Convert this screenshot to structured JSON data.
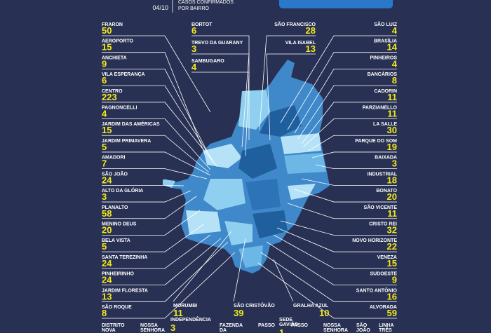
{
  "header": {
    "date": "04/10",
    "subtitle": [
      "CASOS CONFIRMADOS",
      "POR BAIRRO"
    ]
  },
  "left": [
    {
      "name": "FRARON",
      "cases": "50"
    },
    {
      "name": "AEROPORTO",
      "cases": "15"
    },
    {
      "name": "ANCHIETA",
      "cases": "9"
    },
    {
      "name": "VILA ESPERANÇA",
      "cases": "6"
    },
    {
      "name": "CENTRO",
      "cases": "223"
    },
    {
      "name": "PAGNONCELLI",
      "cases": "4"
    },
    {
      "name": "JARDIM DAS AMÉRICAS",
      "cases": "15"
    },
    {
      "name": "JARDIM PRIMAVERA",
      "cases": "5"
    },
    {
      "name": "AMADORI",
      "cases": "7"
    },
    {
      "name": "SÃO JOÃO",
      "cases": "24"
    },
    {
      "name": "ALTO DA GLÓRIA",
      "cases": "3"
    },
    {
      "name": "PLANALTO",
      "cases": "58"
    },
    {
      "name": "MENINO DEUS",
      "cases": "20"
    },
    {
      "name": "BELA VISTA",
      "cases": "5"
    },
    {
      "name": "SANTA TEREZINHA",
      "cases": "24"
    },
    {
      "name": "PINHEIRINHO",
      "cases": "24"
    },
    {
      "name": "JARDIM FLORESTA",
      "cases": "13"
    },
    {
      "name": "SÃO ROQUE",
      "cases": "8"
    }
  ],
  "middle_left": [
    {
      "name": "BORTOT",
      "cases": "6"
    },
    {
      "name": "TREVO DA GUARANY",
      "cases": "3"
    },
    {
      "name": "SAMBUGARO",
      "cases": "4"
    }
  ],
  "middle_right": [
    {
      "name": "SÃO FRANCISCO",
      "cases": "28"
    },
    {
      "name": "VILA ISABEL",
      "cases": "13"
    }
  ],
  "right": [
    {
      "name": "SÃO LUIZ",
      "cases": "4"
    },
    {
      "name": "BRASÍLIA",
      "cases": "14"
    },
    {
      "name": "PINHEIROS",
      "cases": "4"
    },
    {
      "name": "BANCÁRIOS",
      "cases": "8"
    },
    {
      "name": "CADORIN",
      "cases": "11"
    },
    {
      "name": "PARZIANELLO",
      "cases": "11"
    },
    {
      "name": "LA SALLE",
      "cases": "30"
    },
    {
      "name": "PARQUE DO SOM",
      "cases": "19"
    },
    {
      "name": "BAIXADA",
      "cases": "3"
    },
    {
      "name": "INDUSTRIAL",
      "cases": "18"
    },
    {
      "name": "BONATO",
      "cases": "20"
    },
    {
      "name": "SÃO VICENTE",
      "cases": "11"
    },
    {
      "name": "CRISTO REI",
      "cases": "32"
    },
    {
      "name": "NOVO HORIZONTE",
      "cases": "22"
    },
    {
      "name": "VENEZA",
      "cases": "15"
    },
    {
      "name": "SUDOESTE",
      "cases": "9"
    },
    {
      "name": "SANTO ANTÔNIO",
      "cases": "16"
    },
    {
      "name": "ALVORADA",
      "cases": "59"
    }
  ],
  "bottom": [
    {
      "name": "MORUMBI",
      "cases": "11"
    },
    {
      "name": "SÃO CRISTÓVÃO",
      "cases": "39"
    },
    {
      "name": "GRALHA AZUL",
      "cases": "10"
    }
  ],
  "bottom_row": [
    {
      "lines": [
        "DISTRITO",
        "NOVA"
      ]
    },
    {
      "lines": [
        "NOSSA",
        "SENHORA"
      ]
    },
    {
      "lines": [
        "INDEPENDÊNCIA"
      ],
      "cases": "3"
    },
    {
      "lines": [
        "FAZENDA",
        "DA"
      ]
    },
    {
      "lines": [
        "PASSO"
      ]
    },
    {
      "lines": [
        "SEDE",
        "GAVIÃO"
      ],
      "cases": "1"
    },
    {
      "lines": [
        "PASSO"
      ]
    },
    {
      "lines": [
        "NOSSA",
        "SENHORA"
      ]
    },
    {
      "lines": [
        "SÃO",
        "JOÃO"
      ]
    },
    {
      "lines": [
        "LINHA",
        "TRÊS"
      ]
    }
  ]
}
